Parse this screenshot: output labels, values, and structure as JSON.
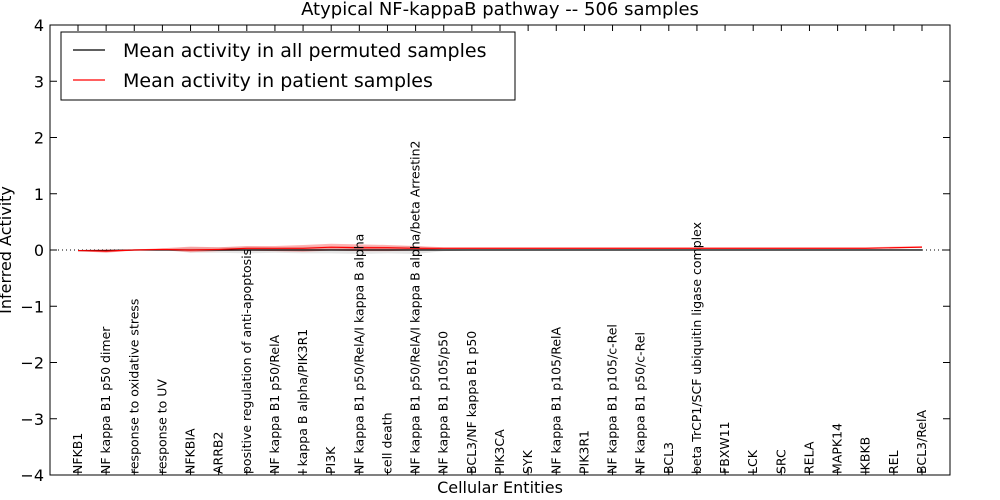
{
  "chart_data": {
    "type": "line",
    "title": "Atypical NF-kappaB pathway -- 506 samples",
    "xlabel": "Cellular Entities",
    "ylabel": "Inferred Activity",
    "ylim": [
      -4,
      4
    ],
    "yticks": [
      -4,
      -3,
      -2,
      -1,
      0,
      1,
      2,
      3,
      4
    ],
    "legend_position": "top-left",
    "grid": false,
    "categories": [
      "NFKB1",
      "NF kappa B1 p50 dimer",
      "response to oxidative stress",
      "response to UV",
      "NFKBIA",
      "ARRB2",
      "positive regulation of anti-apoptosis",
      "NF kappa B1 p50/RelA",
      "I kappa B alpha/PIK3R1",
      "PI3K",
      "NF kappa B1 p50/RelA/I kappa B alpha",
      "cell death",
      "NF kappa B1 p50/RelA/I kappa B alpha/beta Arrestin2",
      "NF kappa B1 p105/p50",
      "BCL3/NF kappa B1 p50",
      "PIK3CA",
      "SYK",
      "NF kappa B1 p105/RelA",
      "PIK3R1",
      "NF kappa B1 p105/c-Rel",
      "NF kappa B1 p50/c-Rel",
      "BCL3",
      "beta TrCP1/SCF ubiquitin ligase complex",
      "FBXW11",
      "LCK",
      "SRC",
      "RELA",
      "MAPK14",
      "IKBKB",
      "REL",
      "BCL3/RelA"
    ],
    "series": [
      {
        "name": "Mean activity in all permuted samples",
        "color": "#000000",
        "values": [
          -0.01,
          -0.01,
          0.0,
          0.0,
          0.0,
          0.0,
          0.0,
          0.0,
          0.0,
          0.0,
          0.0,
          0.0,
          0.0,
          0.0,
          0.0,
          0.0,
          0.0,
          0.0,
          0.0,
          0.0,
          0.0,
          0.0,
          0.0,
          0.0,
          0.0,
          0.0,
          0.0,
          0.0,
          0.0,
          0.0,
          0.0
        ],
        "band_low": [
          -0.02,
          -0.04,
          -0.01,
          0.0,
          -0.05,
          -0.05,
          -0.06,
          -0.05,
          -0.06,
          -0.06,
          -0.07,
          -0.06,
          -0.07,
          -0.02,
          -0.01,
          -0.01,
          -0.01,
          -0.01,
          -0.01,
          -0.01,
          -0.01,
          -0.01,
          -0.01,
          -0.01,
          -0.01,
          -0.01,
          -0.01,
          -0.01,
          -0.01,
          -0.01,
          -0.01
        ],
        "band_high": [
          0.0,
          0.02,
          0.01,
          0.02,
          0.05,
          0.05,
          0.06,
          0.05,
          0.06,
          0.06,
          0.07,
          0.06,
          0.07,
          0.02,
          0.02,
          0.02,
          0.02,
          0.02,
          0.02,
          0.02,
          0.02,
          0.02,
          0.02,
          0.02,
          0.02,
          0.02,
          0.02,
          0.02,
          0.02,
          0.02,
          0.02
        ]
      },
      {
        "name": "Mean activity in patient samples",
        "color": "#ff0000",
        "values": [
          -0.01,
          -0.02,
          0.0,
          0.01,
          0.0,
          0.01,
          0.03,
          0.03,
          0.03,
          0.05,
          0.04,
          0.04,
          0.03,
          0.03,
          0.03,
          0.03,
          0.03,
          0.03,
          0.03,
          0.03,
          0.03,
          0.03,
          0.03,
          0.03,
          0.03,
          0.03,
          0.03,
          0.03,
          0.03,
          0.04,
          0.05
        ],
        "band_low": [
          -0.02,
          -0.05,
          -0.01,
          0.0,
          -0.04,
          -0.02,
          -0.01,
          -0.02,
          -0.03,
          -0.01,
          -0.02,
          -0.02,
          -0.01,
          0.02,
          0.02,
          0.02,
          0.02,
          0.02,
          0.02,
          0.02,
          0.02,
          0.02,
          0.02,
          0.02,
          0.02,
          0.02,
          0.02,
          0.02,
          0.02,
          0.03,
          0.04
        ],
        "band_high": [
          0.0,
          0.01,
          0.01,
          0.03,
          0.06,
          0.05,
          0.07,
          0.07,
          0.09,
          0.11,
          0.1,
          0.09,
          0.07,
          0.05,
          0.05,
          0.05,
          0.05,
          0.05,
          0.05,
          0.05,
          0.05,
          0.05,
          0.05,
          0.05,
          0.05,
          0.05,
          0.05,
          0.05,
          0.05,
          0.06,
          0.07
        ]
      }
    ],
    "baseline": {
      "value": 0,
      "style": "dotted",
      "color": "#000000"
    }
  }
}
